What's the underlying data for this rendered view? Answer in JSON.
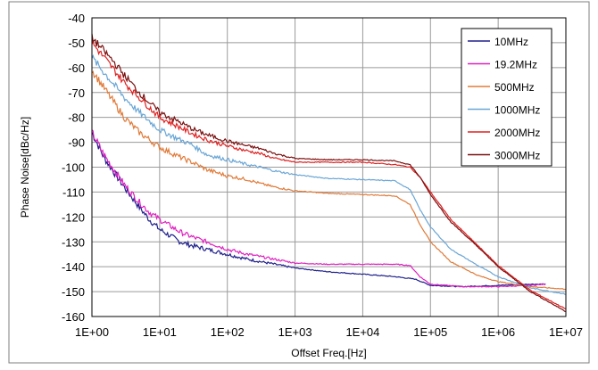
{
  "chart_data": {
    "type": "line",
    "title": "",
    "xlabel": "Offset Freq.[Hz]",
    "ylabel": "Phase Noise[dBc/Hz]",
    "x_scale": "log",
    "xlim": [
      1,
      10000000
    ],
    "ylim": [
      -160,
      -40
    ],
    "x_ticks": [
      1,
      10,
      100,
      1000,
      10000,
      100000,
      1000000,
      10000000
    ],
    "x_tick_labels": [
      "1E+00",
      "1E+01",
      "1E+02",
      "1E+03",
      "1E+04",
      "1E+05",
      "1E+06",
      "1E+07"
    ],
    "y_ticks": [
      -160,
      -150,
      -140,
      -130,
      -120,
      -110,
      -100,
      -90,
      -80,
      -70,
      -60,
      -50,
      -40
    ],
    "y_tick_labels": [
      "-160",
      "-150",
      "-140",
      "-130",
      "-120",
      "-110",
      "-100",
      "-90",
      "-80",
      "-70",
      "-60",
      "-50",
      "-40"
    ],
    "grid": true,
    "legend_position": "top-right",
    "series": [
      {
        "name": "10MHz",
        "color": "#1f1f8c",
        "x": [
          1,
          1.5,
          2,
          3,
          5,
          7,
          10,
          20,
          30,
          50,
          100,
          200,
          500,
          1000,
          3000,
          10000,
          30000,
          60000,
          100000,
          300000,
          1000000,
          3000000,
          5000000
        ],
        "y": [
          -86,
          -96,
          -101,
          -108,
          -116,
          -121,
          -125,
          -130,
          -131.5,
          -133,
          -135,
          -137,
          -139,
          -140.5,
          -142,
          -143,
          -144,
          -145,
          -147.5,
          -148,
          -147.5,
          -147,
          -147
        ]
      },
      {
        "name": "19.2MHz",
        "color": "#e020c0",
        "x": [
          1,
          1.5,
          2,
          3,
          5,
          7,
          10,
          20,
          30,
          50,
          100,
          200,
          500,
          1000,
          3000,
          10000,
          30000,
          50000,
          70000,
          100000,
          300000,
          1000000,
          3000000,
          5000000
        ],
        "y": [
          -86,
          -95,
          -100,
          -107,
          -114,
          -118,
          -121,
          -126,
          -128,
          -130,
          -133,
          -135,
          -137,
          -138.5,
          -139,
          -139,
          -139,
          -139.5,
          -144,
          -147,
          -148,
          -148,
          -147.5,
          -147
        ]
      },
      {
        "name": "500MHz",
        "color": "#e07b39",
        "x": [
          1,
          2,
          3,
          5,
          10,
          20,
          30,
          50,
          100,
          200,
          300,
          500,
          1000,
          3000,
          10000,
          30000,
          50000,
          70000,
          100000,
          200000,
          500000,
          1000000,
          3000000,
          10000000
        ],
        "y": [
          -61,
          -73,
          -80,
          -86,
          -92,
          -96,
          -98,
          -101,
          -103.5,
          -105,
          -106.5,
          -108,
          -109.5,
          -110.5,
          -111,
          -111.5,
          -115,
          -123,
          -130,
          -138,
          -143.5,
          -146,
          -148,
          -149
        ]
      },
      {
        "name": "1000MHz",
        "color": "#6aa6d6",
        "x": [
          1,
          2,
          3,
          5,
          10,
          20,
          30,
          50,
          100,
          200,
          300,
          500,
          1000,
          3000,
          10000,
          30000,
          50000,
          70000,
          100000,
          200000,
          500000,
          1000000,
          3000000,
          10000000
        ],
        "y": [
          -56,
          -66,
          -72,
          -78,
          -85,
          -89,
          -91,
          -95,
          -97,
          -99,
          -100,
          -101.5,
          -103,
          -104.5,
          -105,
          -105.5,
          -109,
          -117,
          -124,
          -133,
          -139.5,
          -144,
          -148.5,
          -151
        ]
      },
      {
        "name": "2000MHz",
        "color": "#e02020",
        "x": [
          1,
          2,
          3,
          5,
          10,
          20,
          30,
          50,
          100,
          200,
          300,
          500,
          1000,
          3000,
          10000,
          30000,
          50000,
          70000,
          100000,
          200000,
          500000,
          1000000,
          3000000,
          10000000
        ],
        "y": [
          -50,
          -60,
          -66,
          -72,
          -80,
          -84,
          -86.5,
          -89,
          -91.5,
          -93.5,
          -94.5,
          -96.5,
          -98,
          -98,
          -98,
          -99,
          -100,
          -104,
          -110,
          -121,
          -131.5,
          -139.5,
          -149.5,
          -157
        ]
      },
      {
        "name": "3000MHz",
        "color": "#7a1010",
        "x": [
          1,
          2,
          3,
          5,
          10,
          20,
          30,
          50,
          100,
          200,
          300,
          500,
          1000,
          3000,
          10000,
          30000,
          50000,
          70000,
          100000,
          200000,
          500000,
          1000000,
          3000000,
          10000000
        ],
        "y": [
          -48,
          -57,
          -63,
          -70,
          -78,
          -82,
          -84.5,
          -87,
          -89.5,
          -91.5,
          -92.5,
          -94.5,
          -96.5,
          -97,
          -97,
          -97.5,
          -99,
          -104,
          -111,
          -122,
          -132,
          -140,
          -150,
          -158
        ]
      }
    ]
  }
}
